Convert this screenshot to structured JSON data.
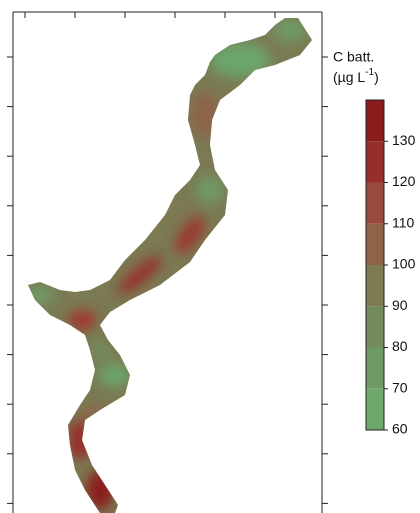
{
  "chart_data": {
    "type": "contour",
    "colorbar": {
      "title": "C batt.",
      "unit": "(µg L",
      "unit_exponent": "-1",
      "unit_close": ")",
      "lim": [
        60,
        140
      ],
      "ticks": [
        60,
        70,
        80,
        90,
        100,
        110,
        120,
        130
      ],
      "colors": [
        "#6fa86b",
        "#6f9a66",
        "#738a5c",
        "#7e7a52",
        "#8e6348",
        "#9a4a3c",
        "#962f2c",
        "#8b1c1e"
      ]
    }
  }
}
